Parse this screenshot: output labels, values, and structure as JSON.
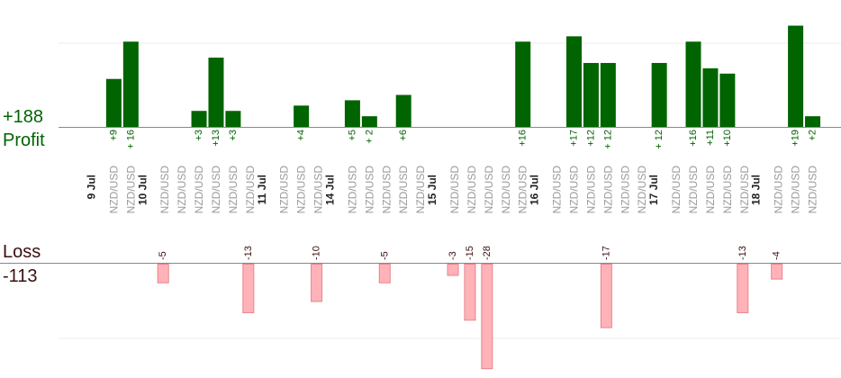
{
  "labels": {
    "profit_total": "+188",
    "profit_title": "Profit",
    "loss_title": "Loss",
    "loss_total": "-113"
  },
  "colors": {
    "profit_bar": "#006400",
    "loss_bar": "#ffb3b8",
    "loss_bar_border": "#e8838b",
    "profit_text": "#006400",
    "loss_text": "#3a0f0f",
    "axis": "#888888",
    "gridline": "#eeeeee",
    "date_text": "#222222",
    "pair_text": "#9a9a9a"
  },
  "chart_data": {
    "type": "bar",
    "title": "",
    "xlabel": "",
    "ylabel": "",
    "profit_ylim": [
      0,
      15
    ],
    "loss_ylim": [
      -30,
      0
    ],
    "grid": true,
    "categories": [
      "NZD/USD",
      "NZD/USD",
      "NZD/USD",
      "NZD/USD",
      "NZD/USD",
      "NZD/USD",
      "NZD/USD",
      "NZD/USD",
      "NZD/USD",
      "NZD/USD",
      "NZD/USD",
      "NZD/USD",
      "NZD/USD",
      "NZD/USD",
      "NZD/USD",
      "NZD/USD",
      "NZD/USD",
      "NZD/USD",
      "NZD/USD",
      "NZD/USD",
      "NZD/USD",
      "NZD/USD",
      "NZD/USD",
      "NZD/USD",
      "NZD/USD",
      "NZD/USD",
      "NZD/USD",
      "NZD/USD",
      "NZD/USD",
      "NZD/USD",
      "NZD/USD",
      "NZD/USD",
      "NZD/USD",
      "NZD/USD",
      "NZD/USD",
      "NZD/USD",
      "NZD/USD",
      "NZD/USD",
      "NZD/USD",
      "NZD/USD",
      "NZD/USD",
      "NZD/USD",
      "NZD/USD"
    ],
    "date_groups": [
      {
        "label": "9 Jul",
        "start": 0
      },
      {
        "label": "10 Jul",
        "start": 3
      },
      {
        "label": "11 Jul",
        "start": 10
      },
      {
        "label": "14 Jul",
        "start": 14
      },
      {
        "label": "15 Jul",
        "start": 20
      },
      {
        "label": "16 Jul",
        "start": 26
      },
      {
        "label": "17 Jul",
        "start": 33
      },
      {
        "label": "18 Jul",
        "start": 39
      }
    ],
    "series": [
      {
        "values": [
          null,
          9,
          16,
          null,
          null,
          null,
          3,
          13,
          3,
          null,
          null,
          null,
          4,
          null,
          null,
          5,
          2,
          null,
          6,
          null,
          null,
          null,
          null,
          null,
          null,
          16,
          null,
          null,
          17,
          12,
          12,
          null,
          null,
          12,
          null,
          16,
          11,
          10,
          null,
          null,
          null,
          19,
          2
        ],
        "labels": [
          "",
          "+9",
          "+ 16",
          "",
          "",
          "",
          "+3",
          "+13",
          "+3",
          "",
          "",
          "",
          "+4",
          "",
          "",
          "+5",
          "+ 2",
          "",
          "+6",
          "",
          "",
          "",
          "",
          "",
          "",
          "+16",
          "",
          "",
          "+17",
          "+12",
          "+ 12",
          "",
          "",
          "+ 12",
          "",
          "+16",
          "+11",
          "+10",
          "",
          "",
          "",
          "+19",
          "+2"
        ]
      },
      {
        "values": [
          null,
          null,
          null,
          null,
          -5,
          null,
          null,
          null,
          null,
          -13,
          null,
          null,
          null,
          -10,
          null,
          null,
          null,
          -5,
          null,
          null,
          null,
          -3,
          -15,
          -28,
          null,
          null,
          null,
          null,
          null,
          null,
          -17,
          null,
          null,
          null,
          null,
          null,
          null,
          null,
          -13,
          null,
          -4,
          null,
          null
        ],
        "labels": [
          "",
          "",
          "",
          "",
          "-5",
          "",
          "",
          "",
          "",
          "-13",
          "",
          "",
          "",
          "-10",
          "",
          "",
          "",
          "-5",
          "",
          "",
          "",
          "-3",
          "-15",
          "-28",
          "",
          "",
          "",
          "",
          "",
          "",
          "-17",
          "",
          "",
          "",
          "",
          "",
          "",
          "",
          "-13",
          "",
          "-4",
          "",
          ""
        ]
      }
    ]
  }
}
